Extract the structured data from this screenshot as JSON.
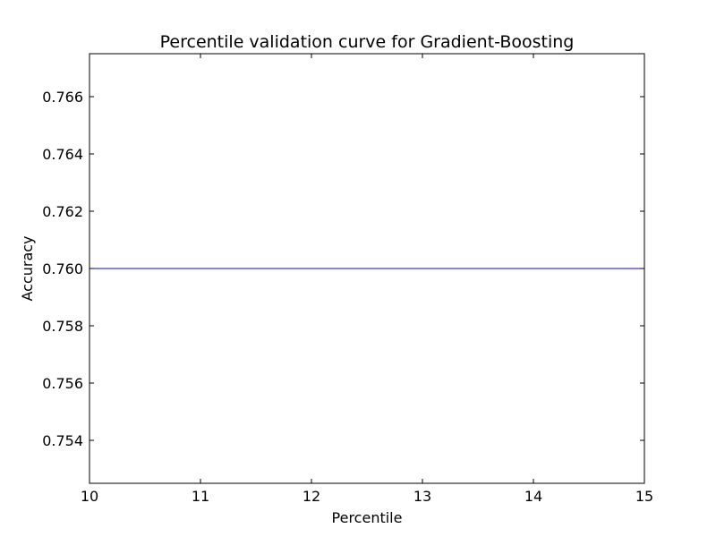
{
  "chart_data": {
    "type": "line",
    "title": "Percentile validation curve for Gradient-Boosting",
    "xlabel": "Percentile",
    "ylabel": "Accuracy",
    "xlim": [
      10,
      15
    ],
    "ylim": [
      0.7525,
      0.7675
    ],
    "x_ticks": [
      10,
      11,
      12,
      13,
      14,
      15
    ],
    "x_tick_labels": [
      "10",
      "11",
      "12",
      "13",
      "14",
      "15"
    ],
    "y_ticks": [
      0.754,
      0.756,
      0.758,
      0.76,
      0.762,
      0.764,
      0.766
    ],
    "y_tick_labels": [
      "0.754",
      "0.756",
      "0.758",
      "0.760",
      "0.762",
      "0.764",
      "0.766"
    ],
    "grid": false,
    "series": [
      {
        "color": "#0000ff",
        "x": [
          10,
          11,
          12,
          13,
          14,
          15
        ],
        "y": [
          0.76,
          0.76,
          0.76,
          0.76,
          0.76,
          0.76
        ]
      },
      {
        "color": "#0000ff",
        "x": [
          10,
          10,
          10,
          10,
          10,
          10
        ],
        "y": [
          0.7533,
          0.7667,
          0.7533,
          0.7667,
          0.7533,
          0.7667
        ]
      }
    ]
  }
}
